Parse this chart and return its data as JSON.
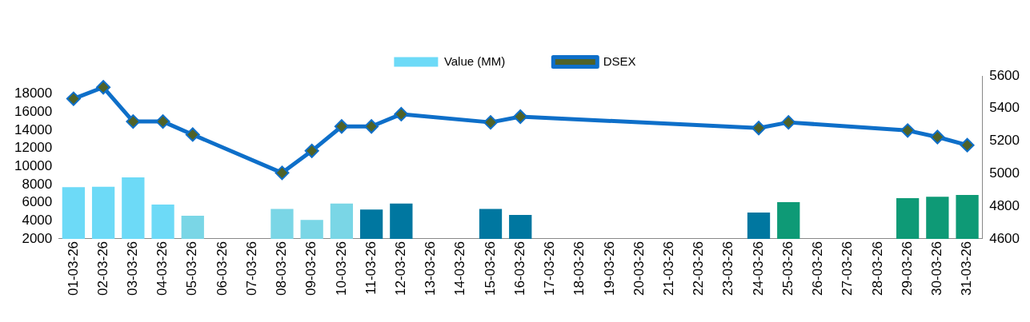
{
  "chart_data": {
    "type": "bar",
    "categories": [
      "01-03-26",
      "02-03-26",
      "03-03-26",
      "04-03-26",
      "05-03-26",
      "06-03-26",
      "07-03-26",
      "08-03-26",
      "09-03-26",
      "10-03-26",
      "11-03-26",
      "12-03-26",
      "13-03-26",
      "14-03-26",
      "15-03-26",
      "16-03-26",
      "17-03-26",
      "18-03-26",
      "19-03-26",
      "20-03-26",
      "21-03-26",
      "22-03-26",
      "23-03-26",
      "24-03-26",
      "25-03-26",
      "26-03-26",
      "27-03-26",
      "28-03-26",
      "29-03-26",
      "30-03-26",
      "31-03-26"
    ],
    "series": [
      {
        "name": "Value (MM)",
        "axis": "y",
        "color": "#6ddaf7",
        "colors": [
          "#6ddaf7",
          "#6ddaf7",
          "#6ddaf7",
          "#6ddaf7",
          "#7ad6e6",
          null,
          null,
          "#7ad6e6",
          "#7ad6e6",
          "#7ad6e6",
          "#0077a0",
          "#0077a0",
          null,
          null,
          "#0077a0",
          "#0077a0",
          null,
          null,
          null,
          null,
          null,
          null,
          null,
          "#0077a0",
          "#0e9a76",
          null,
          null,
          null,
          "#0e9a76",
          "#0e9a76",
          "#0e9a76"
        ],
        "values": [
          7700,
          7750,
          8800,
          5800,
          4550,
          null,
          null,
          5300,
          4100,
          5900,
          5250,
          5900,
          null,
          null,
          5300,
          4650,
          null,
          null,
          null,
          null,
          null,
          null,
          null,
          4900,
          6050,
          null,
          null,
          null,
          6500,
          6650,
          6850
        ]
      },
      {
        "name": "DSEX",
        "type": "line",
        "axis": "y2",
        "color": "#0e6fc9",
        "marker": "diamond",
        "values": [
          5460,
          5530,
          5320,
          5320,
          5240,
          null,
          null,
          5005,
          5140,
          5290,
          5290,
          5365,
          null,
          null,
          5315,
          5350,
          null,
          null,
          null,
          null,
          null,
          null,
          null,
          5280,
          5315,
          null,
          null,
          null,
          5265,
          5225,
          5175
        ]
      }
    ],
    "ylim": [
      2000,
      20000
    ],
    "yticks": [
      2000,
      4000,
      6000,
      8000,
      10000,
      12000,
      14000,
      16000,
      18000
    ],
    "y2lim": [
      4600,
      5600
    ],
    "y2ticks": [
      4600,
      4800,
      5000,
      5200,
      5400,
      5600
    ],
    "legend": "top",
    "grid": false
  }
}
